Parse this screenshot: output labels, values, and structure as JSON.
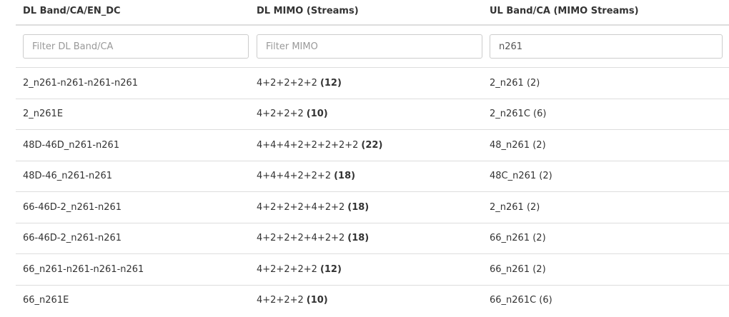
{
  "columns": {
    "dl_band": "DL Band/CA/EN_DC",
    "dl_mimo": "DL MIMO (Streams)",
    "ul_band": "UL Band/CA (MIMO Streams)"
  },
  "filters": {
    "dl_band_placeholder": "Filter DL Band/CA",
    "dl_mimo_placeholder": "Filter MIMO",
    "ul_band_value": "n261"
  },
  "rows": [
    {
      "dl_band": "2_n261-n261-n261-n261",
      "mimo": "4+2+2+2+2",
      "streams": "(12)",
      "ul": "2_n261 (2)"
    },
    {
      "dl_band": "2_n261E",
      "mimo": "4+2+2+2",
      "streams": "(10)",
      "ul": "2_n261C (6)"
    },
    {
      "dl_band": "48D-46D_n261-n261",
      "mimo": "4+4+4+2+2+2+2+2",
      "streams": "(22)",
      "ul": "48_n261 (2)"
    },
    {
      "dl_band": "48D-46_n261-n261",
      "mimo": "4+4+4+2+2+2",
      "streams": "(18)",
      "ul": "48C_n261 (2)"
    },
    {
      "dl_band": "66-46D-2_n261-n261",
      "mimo": "4+2+2+2+4+2+2",
      "streams": "(18)",
      "ul": "2_n261 (2)"
    },
    {
      "dl_band": "66-46D-2_n261-n261",
      "mimo": "4+2+2+2+4+2+2",
      "streams": "(18)",
      "ul": "66_n261 (2)"
    },
    {
      "dl_band": "66_n261-n261-n261-n261",
      "mimo": "4+2+2+2+2",
      "streams": "(12)",
      "ul": "66_n261 (2)"
    },
    {
      "dl_band": "66_n261E",
      "mimo": "4+2+2+2",
      "streams": "(10)",
      "ul": "66_n261C (6)"
    }
  ]
}
